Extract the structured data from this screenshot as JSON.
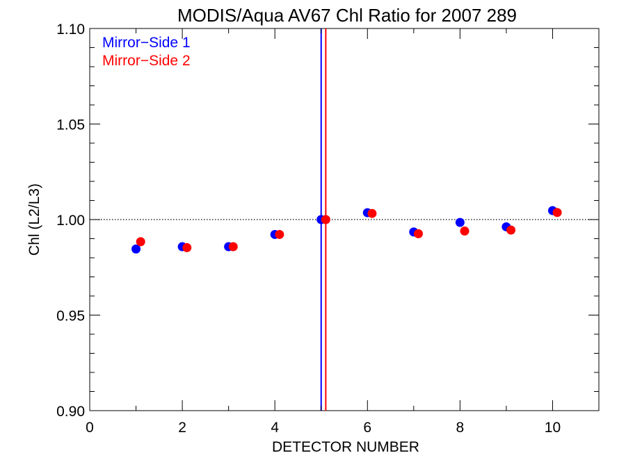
{
  "chart_data": {
    "type": "scatter",
    "title": "MODIS/Aqua AV67 Chl Ratio for 2007 289",
    "xlabel": "DETECTOR NUMBER",
    "ylabel": "Chl (L2/L3)",
    "xlim": [
      0,
      11
    ],
    "ylim": [
      0.9,
      1.1
    ],
    "x_ticks": [
      "0",
      "2",
      "4",
      "6",
      "8",
      "10"
    ],
    "y_ticks": [
      "0.90",
      "0.95",
      "1.00",
      "1.05",
      "1.10"
    ],
    "legend_position": "top-left",
    "reference_line_y": 1.0,
    "vertical_lines": [
      {
        "x": 5.0,
        "color": "#0000ff"
      },
      {
        "x": 5.1,
        "color": "#ff0000"
      }
    ],
    "series": [
      {
        "name": "Mirror−Side 1",
        "color": "#0000ff",
        "x": [
          1,
          2,
          3,
          4,
          5,
          6,
          7,
          8,
          9,
          10
        ],
        "y": [
          0.9846,
          0.9858,
          0.9858,
          0.9922,
          1.0,
          1.0036,
          0.9935,
          0.9985,
          0.9962,
          1.0047
        ]
      },
      {
        "name": "Mirror−Side 2",
        "color": "#ff0000",
        "x": [
          1.1,
          2.1,
          3.1,
          4.1,
          5.1,
          6.1,
          7.1,
          8.1,
          9.1,
          10.1
        ],
        "y": [
          0.9884,
          0.9853,
          0.9858,
          0.9922,
          1.0,
          1.0032,
          0.9926,
          0.994,
          0.9945,
          1.0037
        ]
      }
    ]
  }
}
